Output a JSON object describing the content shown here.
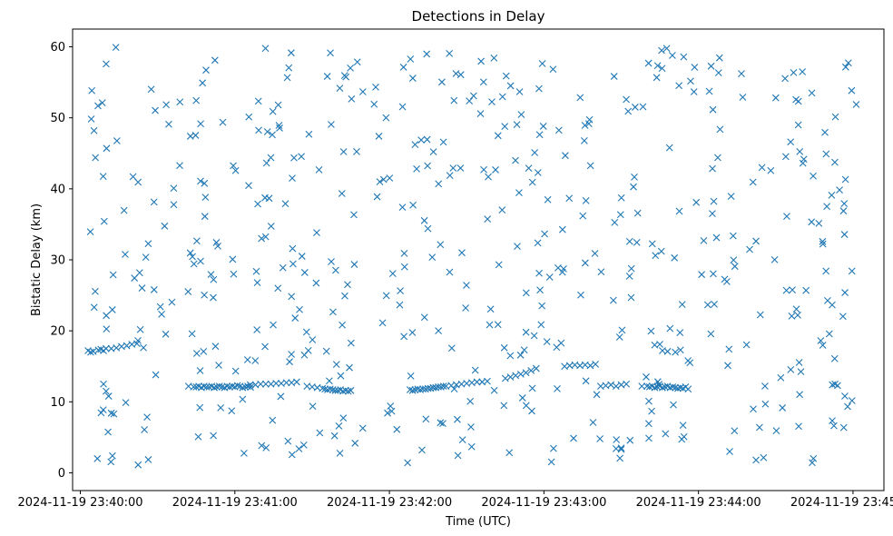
{
  "chart_data": {
    "type": "scatter",
    "title": "Detections in Delay",
    "xlabel": "Time (UTC)",
    "ylabel": "Bistatic Delay (km)",
    "marker": "x",
    "color": "#1f77b4",
    "grid": false,
    "x_ticks": [
      {
        "t": 0,
        "label": "2024-11-19 23:40:00"
      },
      {
        "t": 60,
        "label": "2024-11-19 23:41:00"
      },
      {
        "t": 120,
        "label": "2024-11-19 23:42:00"
      },
      {
        "t": 180,
        "label": "2024-11-19 23:43:00"
      },
      {
        "t": 240,
        "label": "2024-11-19 23:44:00"
      },
      {
        "t": 300,
        "label": "2024-11-19 23:45:00"
      }
    ],
    "y_ticks": [
      0,
      10,
      20,
      30,
      40,
      50,
      60
    ],
    "xlim": [
      -3,
      312
    ],
    "ylim": [
      -2.5,
      62.5
    ],
    "x_unit": "seconds after 2024-11-19 23:40:00 UTC",
    "track_points": [
      [
        3,
        17.2
      ],
      [
        4,
        17
      ],
      [
        5,
        17.1
      ],
      [
        7,
        17.3
      ],
      [
        8,
        17.4
      ],
      [
        9,
        17.2
      ],
      [
        10,
        17.5
      ],
      [
        12,
        17.5
      ],
      [
        14,
        17.6
      ],
      [
        16,
        17.8
      ],
      [
        18,
        17.9
      ],
      [
        20,
        18.1
      ],
      [
        22,
        18.2
      ],
      [
        9,
        12.5
      ],
      [
        10,
        11.5
      ],
      [
        11,
        10.8
      ],
      [
        12,
        8.4
      ],
      [
        13,
        8.3
      ],
      [
        42,
        12.2
      ],
      [
        44,
        12.1
      ],
      [
        45,
        12.1
      ],
      [
        46,
        12.2
      ],
      [
        47,
        12.0
      ],
      [
        48,
        12.2
      ],
      [
        49,
        12.1
      ],
      [
        50,
        12.1
      ],
      [
        51,
        12.2
      ],
      [
        52,
        12.0
      ],
      [
        53,
        12.1
      ],
      [
        54,
        12.2
      ],
      [
        55,
        12.1
      ],
      [
        56,
        12.0
      ],
      [
        57,
        12.2
      ],
      [
        58,
        12.1
      ],
      [
        59,
        12.2
      ],
      [
        60,
        12.1
      ],
      [
        61,
        12.3
      ],
      [
        62,
        12.2
      ],
      [
        63,
        12.0
      ],
      [
        64,
        12.1
      ],
      [
        65,
        12.2
      ],
      [
        66,
        12.4
      ],
      [
        68,
        12.4
      ],
      [
        70,
        12.5
      ],
      [
        72,
        12.5
      ],
      [
        74,
        12.5
      ],
      [
        76,
        12.6
      ],
      [
        78,
        12.6
      ],
      [
        80,
        12.7
      ],
      [
        82,
        12.7
      ],
      [
        84,
        12.8
      ],
      [
        88,
        12.2
      ],
      [
        90,
        12.1
      ],
      [
        92,
        12.0
      ],
      [
        94,
        11.9
      ],
      [
        95,
        11.8
      ],
      [
        96,
        11.7
      ],
      [
        97,
        11.8
      ],
      [
        98,
        11.7
      ],
      [
        99,
        11.6
      ],
      [
        100,
        11.6
      ],
      [
        101,
        11.7
      ],
      [
        102,
        11.5
      ],
      [
        103,
        11.6
      ],
      [
        104,
        11.5
      ],
      [
        105,
        11.6
      ],
      [
        128,
        11.7
      ],
      [
        129,
        11.6
      ],
      [
        130,
        11.7
      ],
      [
        131,
        11.8
      ],
      [
        132,
        11.7
      ],
      [
        133,
        11.8
      ],
      [
        134,
        11.8
      ],
      [
        135,
        11.9
      ],
      [
        136,
        11.9
      ],
      [
        137,
        12.0
      ],
      [
        138,
        12.0
      ],
      [
        139,
        12.1
      ],
      [
        140,
        12.1
      ],
      [
        141,
        12.2
      ],
      [
        142,
        12.2
      ],
      [
        144,
        12.3
      ],
      [
        146,
        12.4
      ],
      [
        148,
        12.5
      ],
      [
        150,
        12.6
      ],
      [
        152,
        12.7
      ],
      [
        154,
        12.8
      ],
      [
        156,
        12.8
      ],
      [
        158,
        12.9
      ],
      [
        165,
        13.3
      ],
      [
        167,
        13.5
      ],
      [
        169,
        13.7
      ],
      [
        171,
        13.9
      ],
      [
        173,
        14.1
      ],
      [
        175,
        14.4
      ],
      [
        177,
        14.7
      ],
      [
        188,
        15.0
      ],
      [
        190,
        15.1
      ],
      [
        192,
        15.2
      ],
      [
        194,
        15.1
      ],
      [
        196,
        15.2
      ],
      [
        198,
        15.1
      ],
      [
        200,
        15.3
      ],
      [
        202,
        12.2
      ],
      [
        204,
        12.3
      ],
      [
        206,
        12.4
      ],
      [
        208,
        12.2
      ],
      [
        210,
        12.4
      ],
      [
        212,
        12.5
      ],
      [
        218,
        12.2
      ],
      [
        220,
        12.2
      ],
      [
        221,
        12.1
      ],
      [
        222,
        12.2
      ],
      [
        223,
        12.0
      ],
      [
        224,
        12.1
      ],
      [
        225,
        12.2
      ],
      [
        226,
        12.0
      ],
      [
        227,
        12.1
      ],
      [
        228,
        12.2
      ],
      [
        229,
        12.0
      ],
      [
        230,
        12.1
      ],
      [
        231,
        12.0
      ],
      [
        232,
        11.9
      ],
      [
        233,
        12.0
      ],
      [
        234,
        11.9
      ],
      [
        235,
        12.1
      ],
      [
        236,
        11.8
      ],
      [
        226,
        17.2
      ],
      [
        228,
        17.1
      ],
      [
        231,
        17.0
      ],
      [
        233,
        17.3
      ],
      [
        223,
        18.0
      ],
      [
        225,
        18.1
      ],
      [
        208,
        3.4
      ],
      [
        210,
        3.3
      ],
      [
        210,
        3.5
      ],
      [
        234,
        6.7
      ],
      [
        292,
        12.4
      ],
      [
        294,
        12.3
      ],
      [
        293,
        12.5
      ]
    ],
    "random_points_seed": 4
  }
}
